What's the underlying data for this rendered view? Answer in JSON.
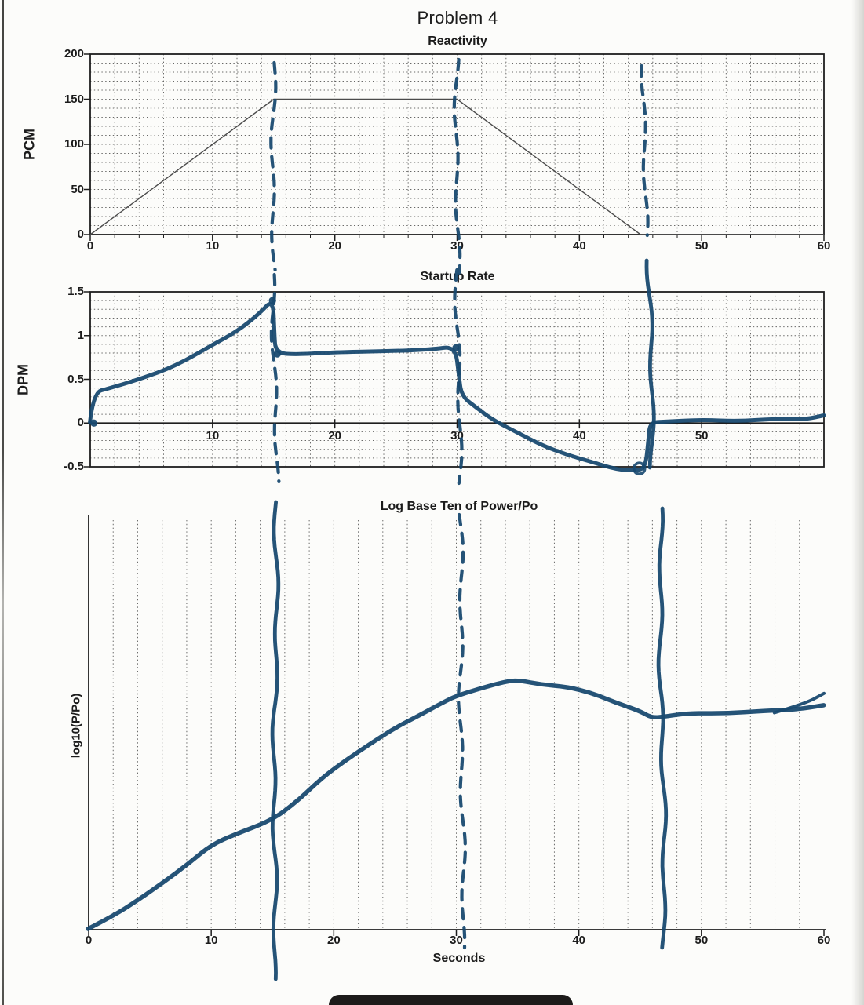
{
  "page": {
    "title": "Problem 4"
  },
  "ink": {
    "pen_color": "#17486f",
    "print_color": "#4b4b4b"
  },
  "chart_data": [
    {
      "type": "line",
      "title": "Reactivity",
      "ylabel": "PCM",
      "xlim": [
        0,
        60
      ],
      "ylim": [
        0,
        200
      ],
      "xticks": [
        0,
        10,
        20,
        30,
        40,
        50,
        60
      ],
      "yticks": [
        0,
        50,
        100,
        150,
        200
      ],
      "x_minor_grid_step": 2,
      "y_minor_grid_step": 10,
      "grid": "dotted-both",
      "series": [
        {
          "name": "reactivity-pcm",
          "style": "printed",
          "points": [
            [
              0,
              0
            ],
            [
              15,
              150
            ],
            [
              30,
              150
            ],
            [
              45,
              0
            ],
            [
              60,
              0
            ]
          ]
        }
      ],
      "hand_lines": [
        {
          "x": 15,
          "style": "dashed"
        },
        {
          "x": 30,
          "style": "dashed"
        },
        {
          "x": 45.3,
          "style": "dashed"
        }
      ]
    },
    {
      "type": "line",
      "title": "Startup Rate",
      "ylabel": "DPM",
      "xlim": [
        0,
        60
      ],
      "ylim": [
        -0.5,
        1.5
      ],
      "xticks": [
        10,
        20,
        30,
        40,
        50
      ],
      "yticks": [
        -0.5,
        0,
        0.5,
        1,
        1.5
      ],
      "x_minor_grid_step": 2,
      "y_minor_grid_step": 0.1,
      "grid": "dotted-both",
      "x_axis_at_zero": true,
      "series": [
        {
          "name": "startup-rate-dpm",
          "style": "hand-drawn",
          "stroke_width": 5,
          "points": [
            [
              0,
              0
            ],
            [
              0.2,
              0.34
            ],
            [
              1.5,
              0.4
            ],
            [
              4,
              0.5
            ],
            [
              7,
              0.66
            ],
            [
              10,
              0.88
            ],
            [
              12,
              1.05
            ],
            [
              13.8,
              1.25
            ],
            [
              14.9,
              1.41
            ],
            [
              15.1,
              1.02
            ],
            [
              15.2,
              0.79
            ],
            [
              17,
              0.79
            ],
            [
              20,
              0.8
            ],
            [
              24,
              0.82
            ],
            [
              28,
              0.85
            ],
            [
              29.9,
              0.87
            ],
            [
              30.1,
              0.55
            ],
            [
              30.3,
              0.3
            ],
            [
              31.5,
              0.18
            ],
            [
              33,
              0.04
            ],
            [
              35,
              -0.12
            ],
            [
              37,
              -0.25
            ],
            [
              39,
              -0.36
            ],
            [
              41,
              -0.45
            ],
            [
              43,
              -0.52
            ],
            [
              44.6,
              -0.55
            ],
            [
              45.4,
              -0.52
            ],
            [
              45.7,
              -0.2
            ],
            [
              45.8,
              0
            ],
            [
              47,
              0.02
            ],
            [
              50,
              0.03
            ],
            [
              53,
              0.03
            ],
            [
              56,
              0.04
            ],
            [
              58.5,
              0.05
            ],
            [
              60,
              0.08
            ]
          ],
          "markers": [
            [
              0.3,
              0
            ],
            [
              14.9,
              1.4
            ],
            [
              15.3,
              0.79
            ],
            [
              29.9,
              0.86
            ]
          ]
        }
      ],
      "ink_loop_at": [
        44.9,
        -0.52
      ],
      "hand_lines": [
        {
          "x": 15,
          "style": "dashed"
        },
        {
          "x": 30,
          "style": "dashed"
        },
        {
          "x": 45.7,
          "style": "solid"
        }
      ]
    },
    {
      "type": "line",
      "title": "Log Base Ten of Power/Po",
      "ylabel": "log10(P/Po)",
      "xlabel": "Seconds",
      "xlim": [
        0,
        60
      ],
      "xticks": [
        0,
        10,
        20,
        30,
        40,
        50,
        60
      ],
      "yticks": [],
      "y_axis_unlabeled": true,
      "x_minor_grid_step": 2,
      "grid": "dotted-vertical-only",
      "series": [
        {
          "name": "log10-power-ratio",
          "style": "hand-drawn",
          "stroke_width": 5.5,
          "y_unit": "fraction-of-axis-height (y axis has no tick labels)",
          "points": [
            [
              0,
              0
            ],
            [
              2,
              0.035
            ],
            [
              4,
              0.07
            ],
            [
              6,
              0.115
            ],
            [
              8,
              0.16
            ],
            [
              10,
              0.205
            ],
            [
              12,
              0.235
            ],
            [
              15,
              0.265
            ],
            [
              17,
              0.315
            ],
            [
              19,
              0.37
            ],
            [
              21,
              0.415
            ],
            [
              23,
              0.455
            ],
            [
              25,
              0.49
            ],
            [
              27,
              0.525
            ],
            [
              29,
              0.555
            ],
            [
              30,
              0.569
            ],
            [
              32,
              0.592
            ],
            [
              34,
              0.605
            ],
            [
              35,
              0.607
            ],
            [
              37,
              0.6
            ],
            [
              39,
              0.592
            ],
            [
              41,
              0.578
            ],
            [
              43,
              0.556
            ],
            [
              45,
              0.532
            ],
            [
              46,
              0.517
            ],
            [
              47,
              0.522
            ],
            [
              49,
              0.528
            ],
            [
              52,
              0.53
            ],
            [
              55,
              0.532
            ],
            [
              58,
              0.54
            ],
            [
              60,
              0.546
            ]
          ]
        }
      ],
      "end_fork": [
        [
          56,
          0.53
        ],
        [
          58.5,
          0.552
        ],
        [
          60,
          0.575
        ]
      ],
      "hand_lines": [
        {
          "x": 15.3,
          "style": "solid"
        },
        {
          "x": 30.3,
          "style": "dashed"
        },
        {
          "x": 46.6,
          "style": "solid"
        }
      ]
    }
  ]
}
